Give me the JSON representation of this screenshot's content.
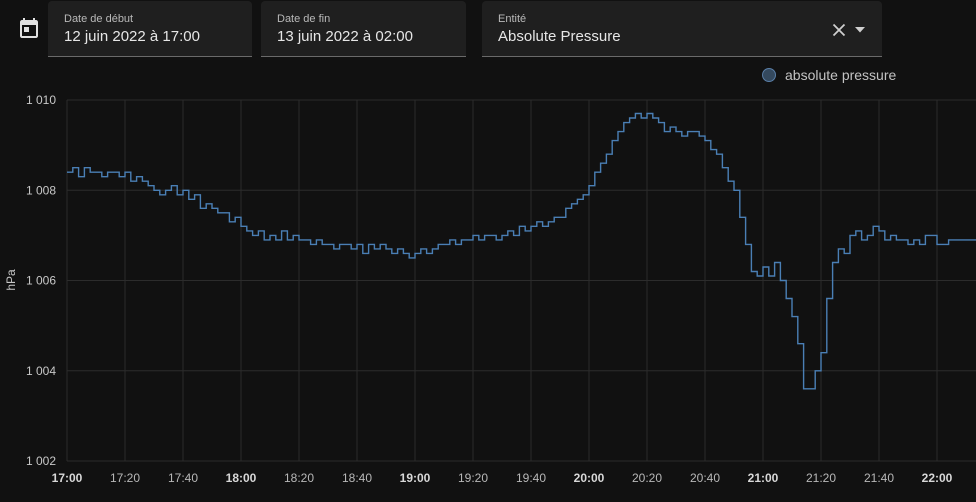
{
  "controls": {
    "start": {
      "label": "Date de début",
      "value": "12 juin 2022 à 17:00"
    },
    "end": {
      "label": "Date de fin",
      "value": "13 juin 2022 à 02:00"
    },
    "entity": {
      "label": "Entité",
      "value": "Absolute Pressure"
    }
  },
  "icons": {
    "calendar": "calendar-icon",
    "clear": "close-icon",
    "dropdown": "chevron-down-icon"
  },
  "colors": {
    "background": "#111111",
    "series": "#4a7fb5",
    "grid": "#2c2c2c"
  },
  "chart_data": {
    "type": "line",
    "step": true,
    "ylabel": "hPa",
    "ylim": [
      1002,
      1010
    ],
    "yticks": [
      1002,
      1004,
      1006,
      1008,
      1010
    ],
    "ytick_labels": [
      "1 002",
      "1 004",
      "1 006",
      "1 008",
      "1 010"
    ],
    "xticks": [
      "17:00",
      "17:20",
      "17:40",
      "18:00",
      "18:20",
      "18:40",
      "19:00",
      "19:20",
      "19:40",
      "20:00",
      "20:20",
      "20:40",
      "21:00",
      "21:20",
      "21:40",
      "22:00"
    ],
    "xticks_bold": [
      "17:00",
      "18:00",
      "19:00",
      "20:00",
      "21:00",
      "22:00"
    ],
    "grid": true,
    "legend_position": "top-right",
    "series": [
      {
        "name": "absolute pressure",
        "color": "#4a7fb5",
        "points": [
          [
            "17:00",
            1008.4
          ],
          [
            "17:02",
            1008.5
          ],
          [
            "17:04",
            1008.3
          ],
          [
            "17:06",
            1008.5
          ],
          [
            "17:08",
            1008.4
          ],
          [
            "17:10",
            1008.4
          ],
          [
            "17:12",
            1008.3
          ],
          [
            "17:14",
            1008.4
          ],
          [
            "17:16",
            1008.4
          ],
          [
            "17:18",
            1008.3
          ],
          [
            "17:20",
            1008.4
          ],
          [
            "17:22",
            1008.2
          ],
          [
            "17:24",
            1008.3
          ],
          [
            "17:26",
            1008.2
          ],
          [
            "17:28",
            1008.1
          ],
          [
            "17:30",
            1008.0
          ],
          [
            "17:32",
            1007.9
          ],
          [
            "17:34",
            1008.0
          ],
          [
            "17:36",
            1008.1
          ],
          [
            "17:38",
            1007.9
          ],
          [
            "17:40",
            1008.0
          ],
          [
            "17:42",
            1007.8
          ],
          [
            "17:44",
            1007.9
          ],
          [
            "17:46",
            1007.6
          ],
          [
            "17:48",
            1007.7
          ],
          [
            "17:50",
            1007.6
          ],
          [
            "17:52",
            1007.5
          ],
          [
            "17:54",
            1007.5
          ],
          [
            "17:56",
            1007.3
          ],
          [
            "17:58",
            1007.4
          ],
          [
            "18:00",
            1007.2
          ],
          [
            "18:02",
            1007.1
          ],
          [
            "18:04",
            1007.0
          ],
          [
            "18:06",
            1007.1
          ],
          [
            "18:08",
            1006.9
          ],
          [
            "18:10",
            1007.0
          ],
          [
            "18:12",
            1006.9
          ],
          [
            "18:14",
            1007.1
          ],
          [
            "18:16",
            1006.9
          ],
          [
            "18:18",
            1007.0
          ],
          [
            "18:20",
            1006.9
          ],
          [
            "18:22",
            1006.9
          ],
          [
            "18:24",
            1006.8
          ],
          [
            "18:26",
            1006.9
          ],
          [
            "18:28",
            1006.8
          ],
          [
            "18:30",
            1006.8
          ],
          [
            "18:32",
            1006.7
          ],
          [
            "18:34",
            1006.8
          ],
          [
            "18:36",
            1006.8
          ],
          [
            "18:38",
            1006.7
          ],
          [
            "18:40",
            1006.8
          ],
          [
            "18:42",
            1006.6
          ],
          [
            "18:44",
            1006.8
          ],
          [
            "18:46",
            1006.7
          ],
          [
            "18:48",
            1006.8
          ],
          [
            "18:50",
            1006.7
          ],
          [
            "18:52",
            1006.6
          ],
          [
            "18:54",
            1006.7
          ],
          [
            "18:56",
            1006.6
          ],
          [
            "18:58",
            1006.5
          ],
          [
            "19:00",
            1006.6
          ],
          [
            "19:02",
            1006.7
          ],
          [
            "19:04",
            1006.6
          ],
          [
            "19:06",
            1006.7
          ],
          [
            "19:08",
            1006.8
          ],
          [
            "19:10",
            1006.8
          ],
          [
            "19:12",
            1006.9
          ],
          [
            "19:14",
            1006.8
          ],
          [
            "19:16",
            1006.9
          ],
          [
            "19:18",
            1006.9
          ],
          [
            "19:20",
            1007.0
          ],
          [
            "19:22",
            1006.9
          ],
          [
            "19:24",
            1007.0
          ],
          [
            "19:26",
            1007.0
          ],
          [
            "19:28",
            1006.9
          ],
          [
            "19:30",
            1007.0
          ],
          [
            "19:32",
            1007.1
          ],
          [
            "19:34",
            1007.0
          ],
          [
            "19:36",
            1007.2
          ],
          [
            "19:38",
            1007.1
          ],
          [
            "19:40",
            1007.2
          ],
          [
            "19:42",
            1007.3
          ],
          [
            "19:44",
            1007.2
          ],
          [
            "19:46",
            1007.3
          ],
          [
            "19:48",
            1007.4
          ],
          [
            "19:50",
            1007.4
          ],
          [
            "19:52",
            1007.6
          ],
          [
            "19:54",
            1007.7
          ],
          [
            "19:56",
            1007.8
          ],
          [
            "19:58",
            1007.9
          ],
          [
            "20:00",
            1008.1
          ],
          [
            "20:02",
            1008.4
          ],
          [
            "20:04",
            1008.6
          ],
          [
            "20:06",
            1008.8
          ],
          [
            "20:08",
            1009.1
          ],
          [
            "20:10",
            1009.3
          ],
          [
            "20:12",
            1009.5
          ],
          [
            "20:14",
            1009.6
          ],
          [
            "20:16",
            1009.7
          ],
          [
            "20:18",
            1009.6
          ],
          [
            "20:20",
            1009.7
          ],
          [
            "20:22",
            1009.6
          ],
          [
            "20:24",
            1009.5
          ],
          [
            "20:26",
            1009.3
          ],
          [
            "20:28",
            1009.4
          ],
          [
            "20:30",
            1009.3
          ],
          [
            "20:32",
            1009.2
          ],
          [
            "20:34",
            1009.3
          ],
          [
            "20:36",
            1009.3
          ],
          [
            "20:38",
            1009.2
          ],
          [
            "20:40",
            1009.1
          ],
          [
            "20:42",
            1008.9
          ],
          [
            "20:44",
            1008.8
          ],
          [
            "20:46",
            1008.5
          ],
          [
            "20:48",
            1008.2
          ],
          [
            "20:50",
            1008.0
          ],
          [
            "20:52",
            1007.4
          ],
          [
            "20:54",
            1006.8
          ],
          [
            "20:56",
            1006.2
          ],
          [
            "20:58",
            1006.1
          ],
          [
            "21:00",
            1006.3
          ],
          [
            "21:02",
            1006.1
          ],
          [
            "21:04",
            1006.4
          ],
          [
            "21:06",
            1006.0
          ],
          [
            "21:08",
            1005.6
          ],
          [
            "21:10",
            1005.2
          ],
          [
            "21:12",
            1004.6
          ],
          [
            "21:14",
            1003.6
          ],
          [
            "21:16",
            1003.6
          ],
          [
            "21:18",
            1004.0
          ],
          [
            "21:20",
            1004.4
          ],
          [
            "21:22",
            1005.6
          ],
          [
            "21:24",
            1006.4
          ],
          [
            "21:26",
            1006.7
          ],
          [
            "21:28",
            1006.6
          ],
          [
            "21:30",
            1007.0
          ],
          [
            "21:32",
            1007.1
          ],
          [
            "21:34",
            1006.9
          ],
          [
            "21:36",
            1007.0
          ],
          [
            "21:38",
            1007.2
          ],
          [
            "21:40",
            1007.1
          ],
          [
            "21:42",
            1006.9
          ],
          [
            "21:44",
            1007.0
          ],
          [
            "21:46",
            1006.9
          ],
          [
            "21:48",
            1006.9
          ],
          [
            "21:50",
            1006.8
          ],
          [
            "21:52",
            1006.9
          ],
          [
            "21:54",
            1006.8
          ],
          [
            "21:56",
            1007.0
          ],
          [
            "21:58",
            1007.0
          ],
          [
            "22:00",
            1006.8
          ],
          [
            "22:02",
            1006.8
          ],
          [
            "22:04",
            1006.9
          ],
          [
            "22:06",
            1006.9
          ]
        ]
      }
    ]
  }
}
